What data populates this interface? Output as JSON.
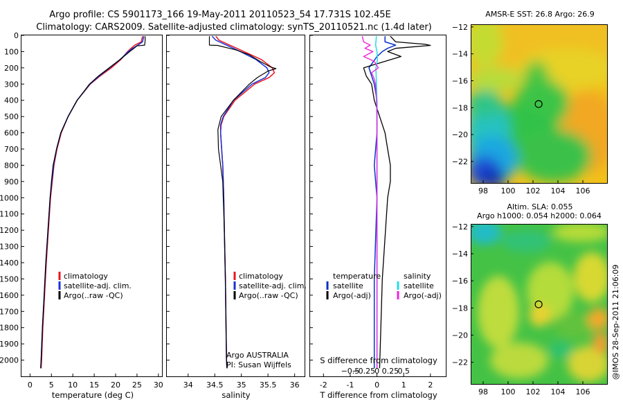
{
  "colors": {
    "climatology": "#e8141e",
    "satellite_adj": "#1a2fd8",
    "argo": "#000000",
    "satellite_t": "#0a30c8",
    "satellite_s": "#22dce8",
    "argo_s": "#ee22e0",
    "axis": "#000000",
    "ocean_green": "#2fc140",
    "cold_blue": "#1a4bd6",
    "warm_orange": "#f5a623"
  },
  "header": {
    "line1": "Argo profile: CS 5901173_166 19-May-2011 20110523_54 17.731S 102.45E",
    "line2": "Climatology: CARS2009. Satellite-adjusted climatology: synTS_20110521.nc (1.4d later)"
  },
  "chart_data": [
    {
      "type": "line",
      "id": "temperature",
      "xlabel": "temperature (deg C)",
      "xlim": [
        -2,
        31
      ],
      "xticks": [
        0,
        5,
        10,
        15,
        20,
        25,
        30
      ],
      "ylim": [
        2100,
        0
      ],
      "yticks": [
        0,
        100,
        200,
        300,
        400,
        500,
        600,
        700,
        800,
        900,
        1000,
        1100,
        1200,
        1300,
        1400,
        1500,
        1600,
        1700,
        1800,
        1900,
        2000
      ],
      "legend": [
        "climatology",
        "satellite-adj. clim.",
        "Argo(..raw -QC)"
      ],
      "series": [
        {
          "name": "climatology",
          "color_key": "climatology",
          "width": 1.5,
          "depth": [
            5,
            40,
            60,
            80,
            100,
            150,
            200,
            250,
            300,
            400,
            500,
            600,
            700,
            800,
            900,
            1000,
            1200,
            1400,
            1600,
            1800,
            2000,
            2050
          ],
          "values": [
            26.3,
            26.0,
            24.5,
            23.6,
            22.8,
            21.2,
            19.0,
            16.4,
            14.1,
            11.0,
            8.9,
            7.3,
            6.3,
            5.6,
            5.2,
            4.8,
            4.3,
            3.8,
            3.4,
            3.0,
            2.7,
            2.6
          ]
        },
        {
          "name": "satellite-adj. clim.",
          "color_key": "satellite_adj",
          "width": 1.5,
          "depth": [
            5,
            40,
            60,
            80,
            100,
            150,
            200,
            250,
            300,
            400,
            500,
            600,
            700,
            800,
            900,
            1000,
            1200,
            1400,
            1600,
            1800,
            2000,
            2050
          ],
          "values": [
            26.6,
            26.3,
            25.2,
            24.0,
            23.0,
            21.0,
            18.6,
            16.2,
            14.0,
            11.0,
            8.9,
            7.2,
            6.2,
            5.5,
            5.1,
            4.7,
            4.2,
            3.7,
            3.3,
            2.9,
            2.6,
            2.5
          ]
        },
        {
          "name": "Argo",
          "color_key": "argo",
          "width": 1.2,
          "depth": [
            5,
            30,
            60,
            65,
            80,
            100,
            150,
            200,
            250,
            300,
            400,
            500,
            600,
            700,
            800,
            900,
            1000,
            1200,
            1400,
            1600,
            1800,
            2000,
            2050
          ],
          "values": [
            26.9,
            26.9,
            26.8,
            25.0,
            24.3,
            23.3,
            21.0,
            18.5,
            16.0,
            13.9,
            11.0,
            8.9,
            7.2,
            6.2,
            5.4,
            5.0,
            4.7,
            4.2,
            3.7,
            3.3,
            2.9,
            2.6,
            2.5
          ]
        }
      ]
    },
    {
      "type": "line",
      "id": "salinity",
      "xlabel": "salinity",
      "xlim": [
        33.6,
        36.2
      ],
      "xticks": [
        34,
        34.5,
        35,
        35.5,
        36
      ],
      "xtick_labels": [
        "34",
        "34.5",
        "35",
        "35.5",
        "36"
      ],
      "ylim": [
        2100,
        0
      ],
      "legend": [
        "climatology",
        "satellite-adj. clim.",
        "Argo(..raw -QC)"
      ],
      "annotation": [
        "Argo AUSTRALIA",
        "PI: Susan Wijffels"
      ],
      "series": [
        {
          "name": "climatology",
          "color_key": "climatology",
          "width": 1.5,
          "depth": [
            5,
            30,
            60,
            100,
            150,
            200,
            230,
            260,
            300,
            400,
            500,
            550,
            600,
            700,
            800,
            1000,
            1200,
            1500,
            2000,
            2050
          ],
          "values": [
            34.52,
            34.58,
            34.78,
            35.05,
            35.38,
            35.58,
            35.62,
            35.52,
            35.25,
            34.88,
            34.67,
            34.62,
            34.61,
            34.63,
            34.65,
            34.67,
            34.68,
            34.7,
            34.72,
            34.73
          ]
        },
        {
          "name": "satellite-adj. clim.",
          "color_key": "satellite_adj",
          "width": 1.5,
          "depth": [
            5,
            30,
            60,
            100,
            150,
            200,
            230,
            260,
            300,
            400,
            500,
            550,
            600,
            700,
            800,
            1000,
            1200,
            1500,
            2000,
            2050
          ],
          "values": [
            34.45,
            34.52,
            34.72,
            34.98,
            35.28,
            35.48,
            35.52,
            35.45,
            35.2,
            34.85,
            34.66,
            34.61,
            34.61,
            34.63,
            34.65,
            34.67,
            34.68,
            34.7,
            34.72,
            34.73
          ]
        },
        {
          "name": "Argo",
          "color_key": "argo",
          "width": 1.2,
          "depth": [
            5,
            60,
            62,
            90,
            120,
            160,
            195,
            205,
            220,
            260,
            300,
            400,
            500,
            580,
            700,
            800,
            900,
            1000,
            1200,
            1500,
            2000,
            2050
          ],
          "values": [
            34.4,
            34.4,
            34.55,
            34.9,
            35.15,
            35.35,
            35.55,
            35.65,
            35.5,
            35.3,
            35.15,
            34.85,
            34.62,
            34.56,
            34.57,
            34.61,
            34.65,
            34.66,
            34.68,
            34.7,
            34.72,
            34.73
          ]
        }
      ]
    },
    {
      "type": "line",
      "id": "difference",
      "xlabel": "T difference from climatology",
      "toplabel": "S difference from climatology",
      "xlim": [
        -2.5,
        2.6
      ],
      "xticks": [
        -2,
        -1,
        0,
        1,
        2
      ],
      "top_ticks": [
        -0.5,
        -0.25,
        0,
        0.25,
        0.5
      ],
      "top_tick_labels": [
        "−0.5",
        "−0.25",
        "0",
        "0.25",
        "0.5"
      ],
      "ylim": [
        2100,
        0
      ],
      "legend": {
        "temperature_title": "temperature",
        "salinity_title": "salinity",
        "temperature": [
          "satellite",
          "Argo(-adj)"
        ],
        "salinity": [
          "satellite",
          "Argo(-adj)"
        ]
      },
      "series": [
        {
          "name": "satellite T",
          "color_key": "satellite_t",
          "width": 1.5,
          "depth": [
            5,
            40,
            60,
            80,
            100,
            130,
            200,
            300,
            400,
            600,
            800,
            1000,
            1500,
            2050
          ],
          "values": [
            0.3,
            0.3,
            0.7,
            0.4,
            0.2,
            0.0,
            -0.3,
            -0.1,
            0.0,
            0.0,
            -0.1,
            0.0,
            -0.1,
            -0.1
          ]
        },
        {
          "name": "Argo T",
          "color_key": "argo",
          "width": 1.3,
          "depth": [
            5,
            40,
            55,
            62,
            80,
            100,
            130,
            160,
            200,
            250,
            300,
            400,
            500,
            600,
            700,
            800,
            900,
            1000,
            1500,
            2050
          ],
          "values": [
            0.5,
            0.7,
            1.8,
            2.0,
            0.7,
            0.4,
            0.9,
            0.3,
            -0.5,
            -0.4,
            -0.2,
            -0.1,
            0.1,
            0.3,
            0.4,
            0.5,
            0.5,
            0.4,
            0.2,
            0.1
          ]
        },
        {
          "name": "satellite S",
          "color_key": "satellite_s",
          "width": 1.5,
          "depth": [
            5,
            60,
            100,
            150,
            200,
            300,
            400,
            600,
            800,
            1000,
            1500,
            2050
          ],
          "values": [
            -0.02,
            -0.05,
            0.0,
            0.02,
            -0.04,
            -0.02,
            0.0,
            0.0,
            0.0,
            0.0,
            0.0,
            0.0
          ]
        },
        {
          "name": "Argo S",
          "color_key": "argo_s",
          "width": 1.4,
          "depth": [
            5,
            40,
            60,
            80,
            100,
            130,
            160,
            200,
            230,
            260,
            300,
            400,
            500,
            600,
            800,
            1000,
            1500,
            2050
          ],
          "values": [
            -0.55,
            -0.5,
            -0.25,
            -0.45,
            -0.15,
            -0.5,
            -0.1,
            0.05,
            -0.2,
            -0.12,
            -0.05,
            -0.02,
            0.0,
            0.0,
            0.0,
            0.0,
            0.0,
            0.0
          ]
        }
      ]
    },
    {
      "type": "heatmap",
      "id": "sst_map",
      "title": "AMSR-E SST: 26.8 Argo: 26.9",
      "xlim": [
        97,
        108
      ],
      "ylim": [
        -23.6,
        -11.8
      ],
      "xticks": [
        98,
        100,
        102,
        104,
        106
      ],
      "yticks": [
        -12,
        -14,
        -16,
        -18,
        -20,
        -22
      ],
      "argo_position": {
        "lon": 102.45,
        "lat": -17.73
      }
    },
    {
      "type": "heatmap",
      "id": "sla_map",
      "title_line1": "Altim. SLA: 0.055",
      "title_line2": "Argo h1000: 0.054 h2000: 0.064",
      "xlim": [
        97,
        108
      ],
      "ylim": [
        -23.6,
        -11.8
      ],
      "xticks": [
        98,
        100,
        102,
        104,
        106
      ],
      "yticks": [
        -12,
        -14,
        -16,
        -18,
        -20,
        -22
      ],
      "argo_position": {
        "lon": 102.45,
        "lat": -17.73
      }
    }
  ],
  "footer": {
    "stamp": "@IMOS 28-Sep-2011 21:06:09"
  }
}
